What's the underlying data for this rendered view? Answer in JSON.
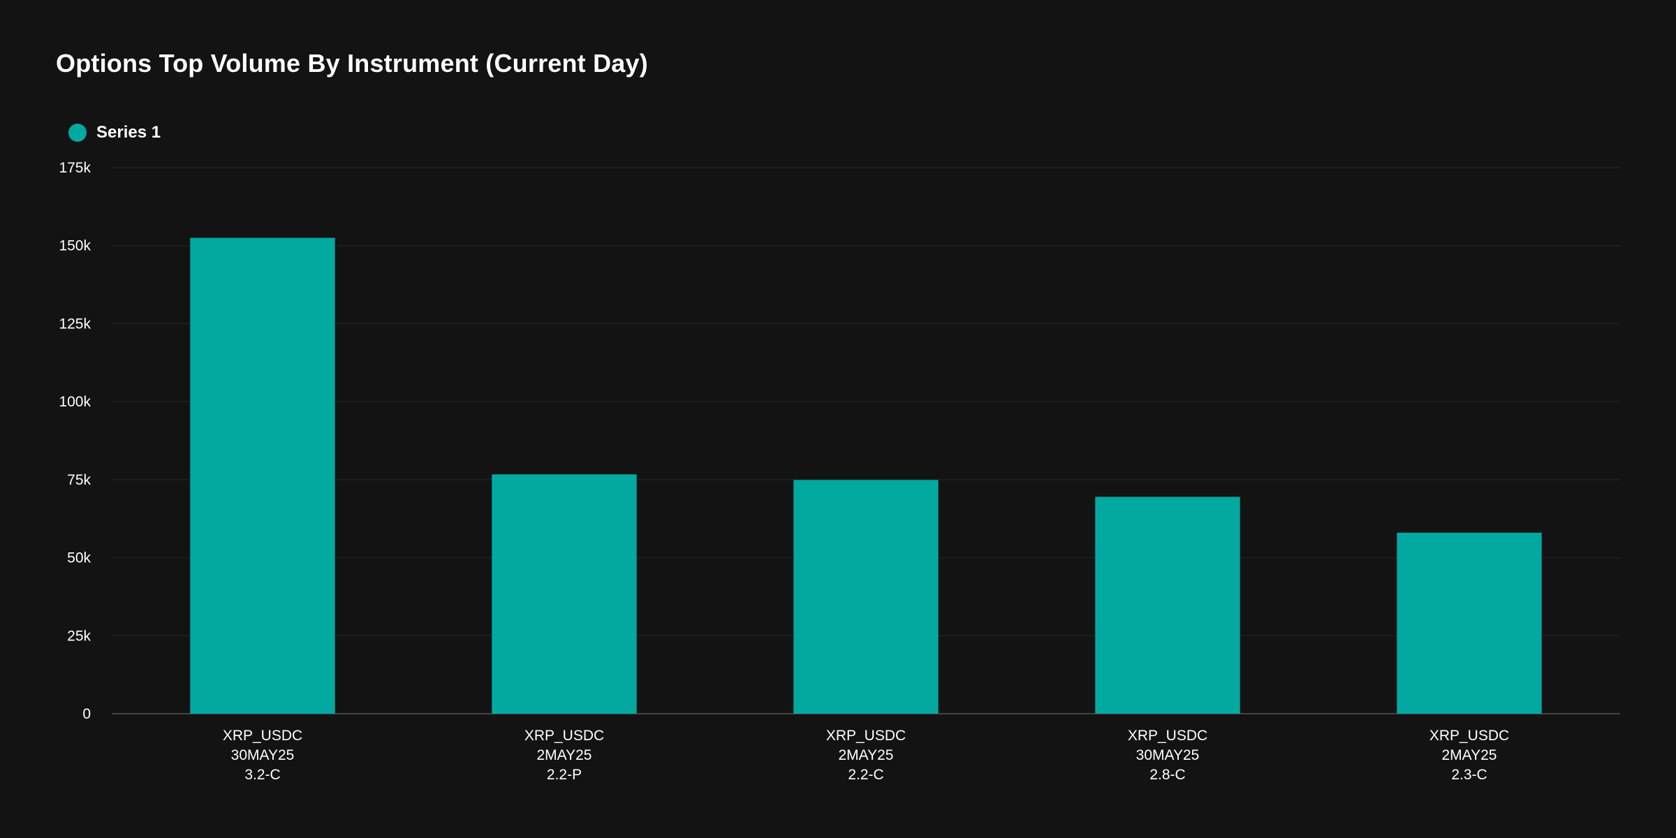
{
  "chart_data": {
    "type": "bar",
    "title": "Options Top Volume By Instrument (Current Day)",
    "xlabel": "",
    "ylabel": "",
    "ylim": [
      0,
      175000
    ],
    "yticks": [
      {
        "value": 0,
        "label": "0"
      },
      {
        "value": 25000,
        "label": "25k"
      },
      {
        "value": 50000,
        "label": "50k"
      },
      {
        "value": 75000,
        "label": "75k"
      },
      {
        "value": 100000,
        "label": "100k"
      },
      {
        "value": 125000,
        "label": "125k"
      },
      {
        "value": 150000,
        "label": "150k"
      },
      {
        "value": 175000,
        "label": "175k"
      }
    ],
    "grid": true,
    "legend_position": "top-left",
    "categories": [
      [
        "XRP_USDC",
        "30MAY25",
        "3.2-C"
      ],
      [
        "XRP_USDC",
        "2MAY25",
        "2.2-P"
      ],
      [
        "XRP_USDC",
        "2MAY25",
        "2.2-C"
      ],
      [
        "XRP_USDC",
        "30MAY25",
        "2.8-C"
      ],
      [
        "XRP_USDC",
        "2MAY25",
        "2.3-C"
      ]
    ],
    "series": [
      {
        "name": "Series 1",
        "color": "#02A9A0",
        "values": [
          152500,
          76700,
          74900,
          69500,
          58000
        ]
      }
    ]
  },
  "colors": {
    "background": "#131313",
    "grid": "#222222",
    "axis": "#444444",
    "text": "#ffffff"
  }
}
